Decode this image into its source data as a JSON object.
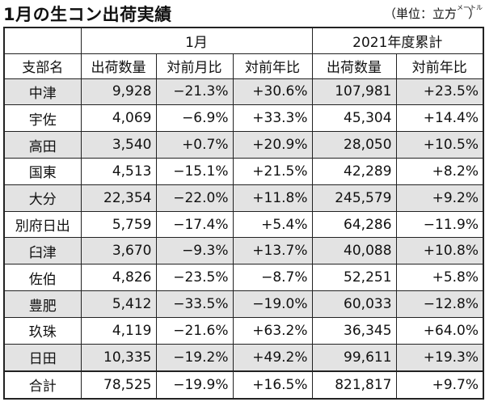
{
  "title": "1月の生コン出荷実績",
  "unit": {
    "open": "（単位：立方",
    "small": "メートル",
    "close": "）"
  },
  "headers": {
    "group_month": "1月",
    "group_year": "2021年度累計",
    "branch": "支部名",
    "ship_qty": "出荷数量",
    "prev_month": "対前月比",
    "prev_year": "対前年比",
    "ship_qty2": "出荷数量",
    "prev_year2": "対前年比"
  },
  "rows": [
    {
      "branch": "中津",
      "qty": "9,928",
      "mom": "−21.3%",
      "yoy": "+30.6%",
      "cum": "107,981",
      "cum_yoy": "+23.5%"
    },
    {
      "branch": "宇佐",
      "qty": "4,069",
      "mom": "−6.9%",
      "yoy": "+33.3%",
      "cum": "45,304",
      "cum_yoy": "+14.4%"
    },
    {
      "branch": "高田",
      "qty": "3,540",
      "mom": "+0.7%",
      "yoy": "+20.9%",
      "cum": "28,050",
      "cum_yoy": "+10.5%"
    },
    {
      "branch": "国東",
      "qty": "4,513",
      "mom": "−15.1%",
      "yoy": "+21.5%",
      "cum": "42,289",
      "cum_yoy": "+8.2%"
    },
    {
      "branch": "大分",
      "qty": "22,354",
      "mom": "−22.0%",
      "yoy": "+11.8%",
      "cum": "245,579",
      "cum_yoy": "+9.2%"
    },
    {
      "branch": "別府日出",
      "qty": "5,759",
      "mom": "−17.4%",
      "yoy": "+5.4%",
      "cum": "64,286",
      "cum_yoy": "−11.9%"
    },
    {
      "branch": "臼津",
      "qty": "3,670",
      "mom": "−9.3%",
      "yoy": "+13.7%",
      "cum": "40,088",
      "cum_yoy": "+10.8%"
    },
    {
      "branch": "佐伯",
      "qty": "4,826",
      "mom": "−23.5%",
      "yoy": "−8.7%",
      "cum": "52,251",
      "cum_yoy": "+5.8%"
    },
    {
      "branch": "豊肥",
      "qty": "5,412",
      "mom": "−33.5%",
      "yoy": "−19.0%",
      "cum": "60,033",
      "cum_yoy": "−12.8%"
    },
    {
      "branch": "玖珠",
      "qty": "4,119",
      "mom": "−21.6%",
      "yoy": "+63.2%",
      "cum": "36,345",
      "cum_yoy": "+64.0%"
    },
    {
      "branch": "日田",
      "qty": "10,335",
      "mom": "−19.2%",
      "yoy": "+49.2%",
      "cum": "99,611",
      "cum_yoy": "+19.3%"
    },
    {
      "branch": "合計",
      "qty": "78,525",
      "mom": "−19.9%",
      "yoy": "+16.5%",
      "cum": "821,817",
      "cum_yoy": "+9.7%"
    }
  ],
  "colors": {
    "shade": "#e3e3e3",
    "border": "#222222"
  }
}
